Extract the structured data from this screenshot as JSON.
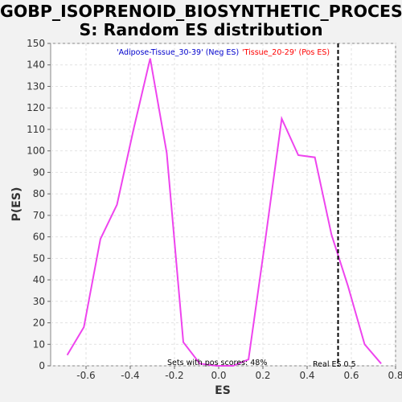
{
  "chart_data": {
    "type": "line",
    "title_line1": "GOBP_ISOPRENOID_BIOSYNTHETIC_PROCES",
    "title_line2": "S: Random ES distribution",
    "xlabel": "ES",
    "ylabel": "P(ES)",
    "xlim": [
      -0.76,
      0.8
    ],
    "ylim": [
      0,
      150
    ],
    "xticks": [
      -0.6,
      -0.4,
      -0.2,
      0.0,
      0.2,
      0.4,
      0.6,
      0.8
    ],
    "xtick_labels": [
      "-0.6",
      "-0.4",
      "-0.2",
      "0.0",
      "0.2",
      "0.4",
      "0.6",
      "0.8"
    ],
    "yticks": [
      0,
      10,
      20,
      30,
      40,
      50,
      60,
      70,
      80,
      90,
      100,
      110,
      120,
      130,
      140,
      150
    ],
    "grid": true,
    "series": [
      {
        "color": "#ee44ee",
        "x": [
          -0.685,
          -0.61,
          -0.535,
          -0.46,
          -0.385,
          -0.31,
          -0.235,
          -0.16,
          -0.085,
          -0.01,
          0.065,
          0.135,
          0.21,
          0.285,
          0.36,
          0.435,
          0.51,
          0.585,
          0.66,
          0.735
        ],
        "y": [
          5,
          18,
          59,
          75,
          110,
          143,
          99,
          11,
          1,
          0,
          0,
          3,
          58,
          115,
          98,
          97,
          61,
          37,
          10,
          1
        ]
      }
    ],
    "real_es": 0.54,
    "real_es_label": "Real ES 0.5",
    "pos_scores_label": "Sets with pos scores: 48%",
    "legend_neg": "'Adipose-Tissue_30-39' (Neg ES)",
    "legend_pos": "'Tissue_20-29' (Pos ES)",
    "colors": {
      "neg_label": "#0000cc",
      "pos_label": "#ff0000",
      "line": "#ee44ee"
    }
  }
}
